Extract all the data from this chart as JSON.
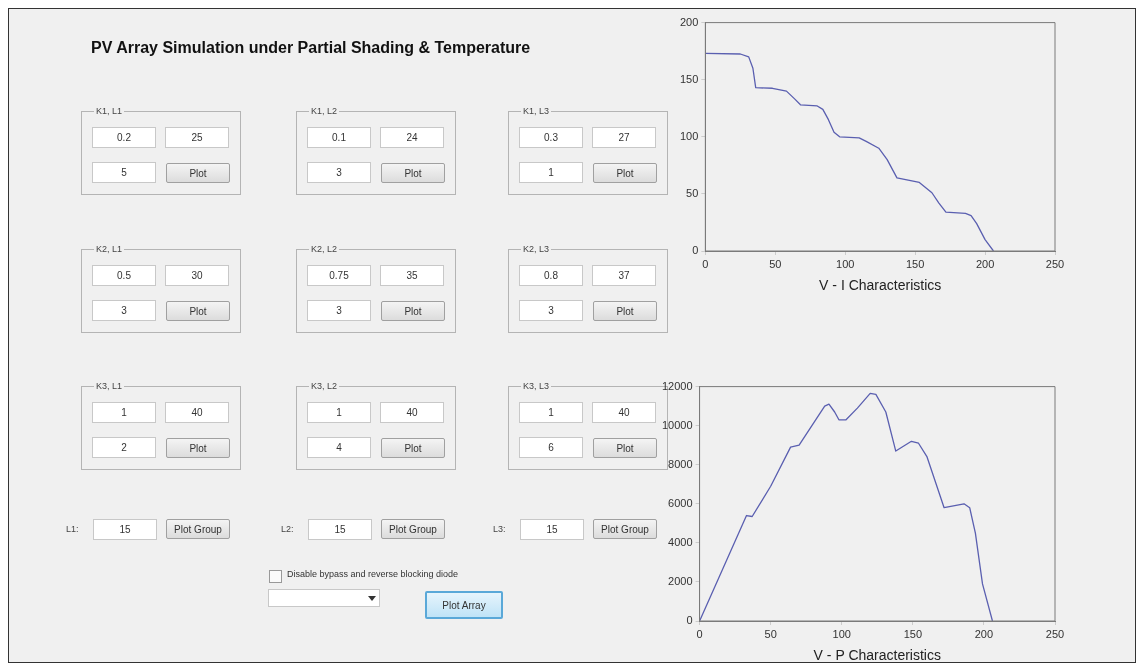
{
  "chart_data": [
    {
      "type": "other",
      "title": "PV Array Simulation under Partial Shading & Temperature",
      "annotations": [
        "K1, L1",
        "0.2",
        "25",
        "5",
        "Plot",
        "K1, L2",
        "0.1",
        "24",
        "3",
        "Plot",
        "K1, L3",
        "0.3",
        "27",
        "1",
        "Plot",
        "K2, L1",
        "0.5",
        "30",
        "3",
        "Plot",
        "K2, L2",
        "0.75",
        "35",
        "3",
        "Plot",
        "K2, L3",
        "0.8",
        "37",
        "3",
        "Plot",
        "K3, L1",
        "1",
        "40",
        "2",
        "Plot",
        "K3, L2",
        "1",
        "40",
        "4",
        "Plot",
        "K3, L3",
        "1",
        "40",
        "6",
        "Plot",
        "L1:",
        "15",
        "Plot Group",
        "L2:",
        "15",
        "Plot Group",
        "L3:",
        "15",
        "Plot Group",
        "Disable bypass and reverse blocking diode",
        "Plot Array"
      ]
    },
    {
      "type": "line",
      "xlabel": "V - I Characteristics",
      "x": [
        0,
        25,
        31,
        34,
        36,
        48,
        58,
        64,
        68,
        80,
        84,
        88,
        92,
        96,
        110,
        115,
        124,
        130,
        137,
        145,
        153,
        162,
        167,
        172,
        186,
        190,
        194,
        200,
        206
      ],
      "series": [
        {
          "color": "#5a5fb0",
          "values": [
            173,
            172.5,
            170,
            160,
            143,
            142.5,
            140,
            133,
            128,
            127,
            124,
            115,
            104,
            100,
            99,
            96,
            90,
            80,
            64,
            62,
            60,
            51,
            42,
            34,
            33,
            31,
            24,
            10,
            0
          ]
        }
      ],
      "xlim": [
        0,
        250
      ],
      "xticks": [
        0,
        50,
        100,
        150,
        200,
        250
      ],
      "ylim": [
        0,
        200
      ],
      "yticks": [
        0,
        50,
        100,
        150,
        200
      ],
      "grid": false,
      "legend": false,
      "marker": "none",
      "line_style": "solid"
    },
    {
      "type": "line",
      "xlabel": "V - P Characteristics",
      "x": [
        0,
        33,
        37,
        50,
        64,
        70,
        79,
        88,
        91,
        95,
        98,
        103,
        111,
        120,
        124,
        131,
        138,
        149,
        154,
        160,
        172,
        186,
        190,
        194,
        199,
        206
      ],
      "series": [
        {
          "color": "#5a5fb0",
          "values": [
            0,
            5400,
            5350,
            6900,
            8900,
            9000,
            10000,
            11000,
            11100,
            10700,
            10300,
            10300,
            10900,
            11650,
            11600,
            10700,
            8700,
            9200,
            9100,
            8400,
            5800,
            6000,
            5800,
            4500,
            1900,
            0
          ]
        }
      ],
      "xlim": [
        0,
        250
      ],
      "xticks": [
        0,
        50,
        100,
        150,
        200,
        250
      ],
      "ylim": [
        0,
        12000
      ],
      "yticks": [
        0,
        2000,
        4000,
        6000,
        8000,
        10000,
        12000
      ],
      "grid": false,
      "legend": false,
      "marker": "none",
      "line_style": "solid"
    }
  ]
}
